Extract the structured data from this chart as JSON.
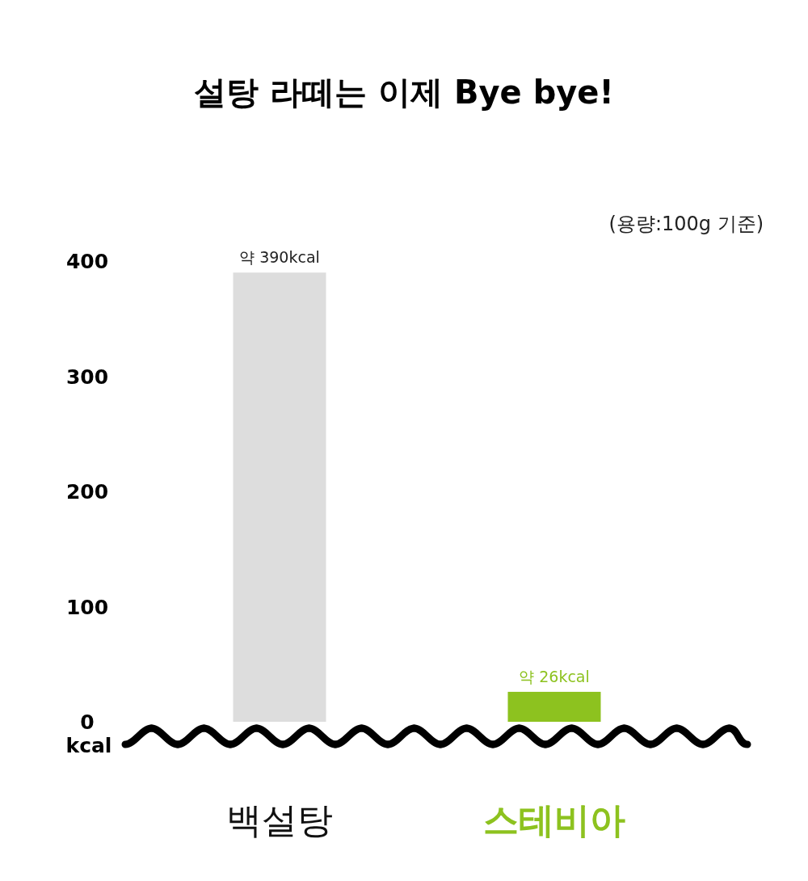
{
  "chart_data": {
    "type": "bar",
    "title": "설탕 라떼는 이제 Bye bye!",
    "ylabel": "kcal",
    "annotations": [
      "(용량:100g 기준)"
    ],
    "categories": [
      "백설탕",
      "스테비아"
    ],
    "values": [
      390,
      26
    ],
    "colors": [
      "#dddddd",
      "#8dc21f"
    ],
    "value_labels": [
      "약 390kcal",
      "약 26kcal"
    ],
    "ylim": [
      0,
      400
    ],
    "yticks": [
      0,
      100,
      200,
      300,
      400
    ],
    "grid": false
  }
}
